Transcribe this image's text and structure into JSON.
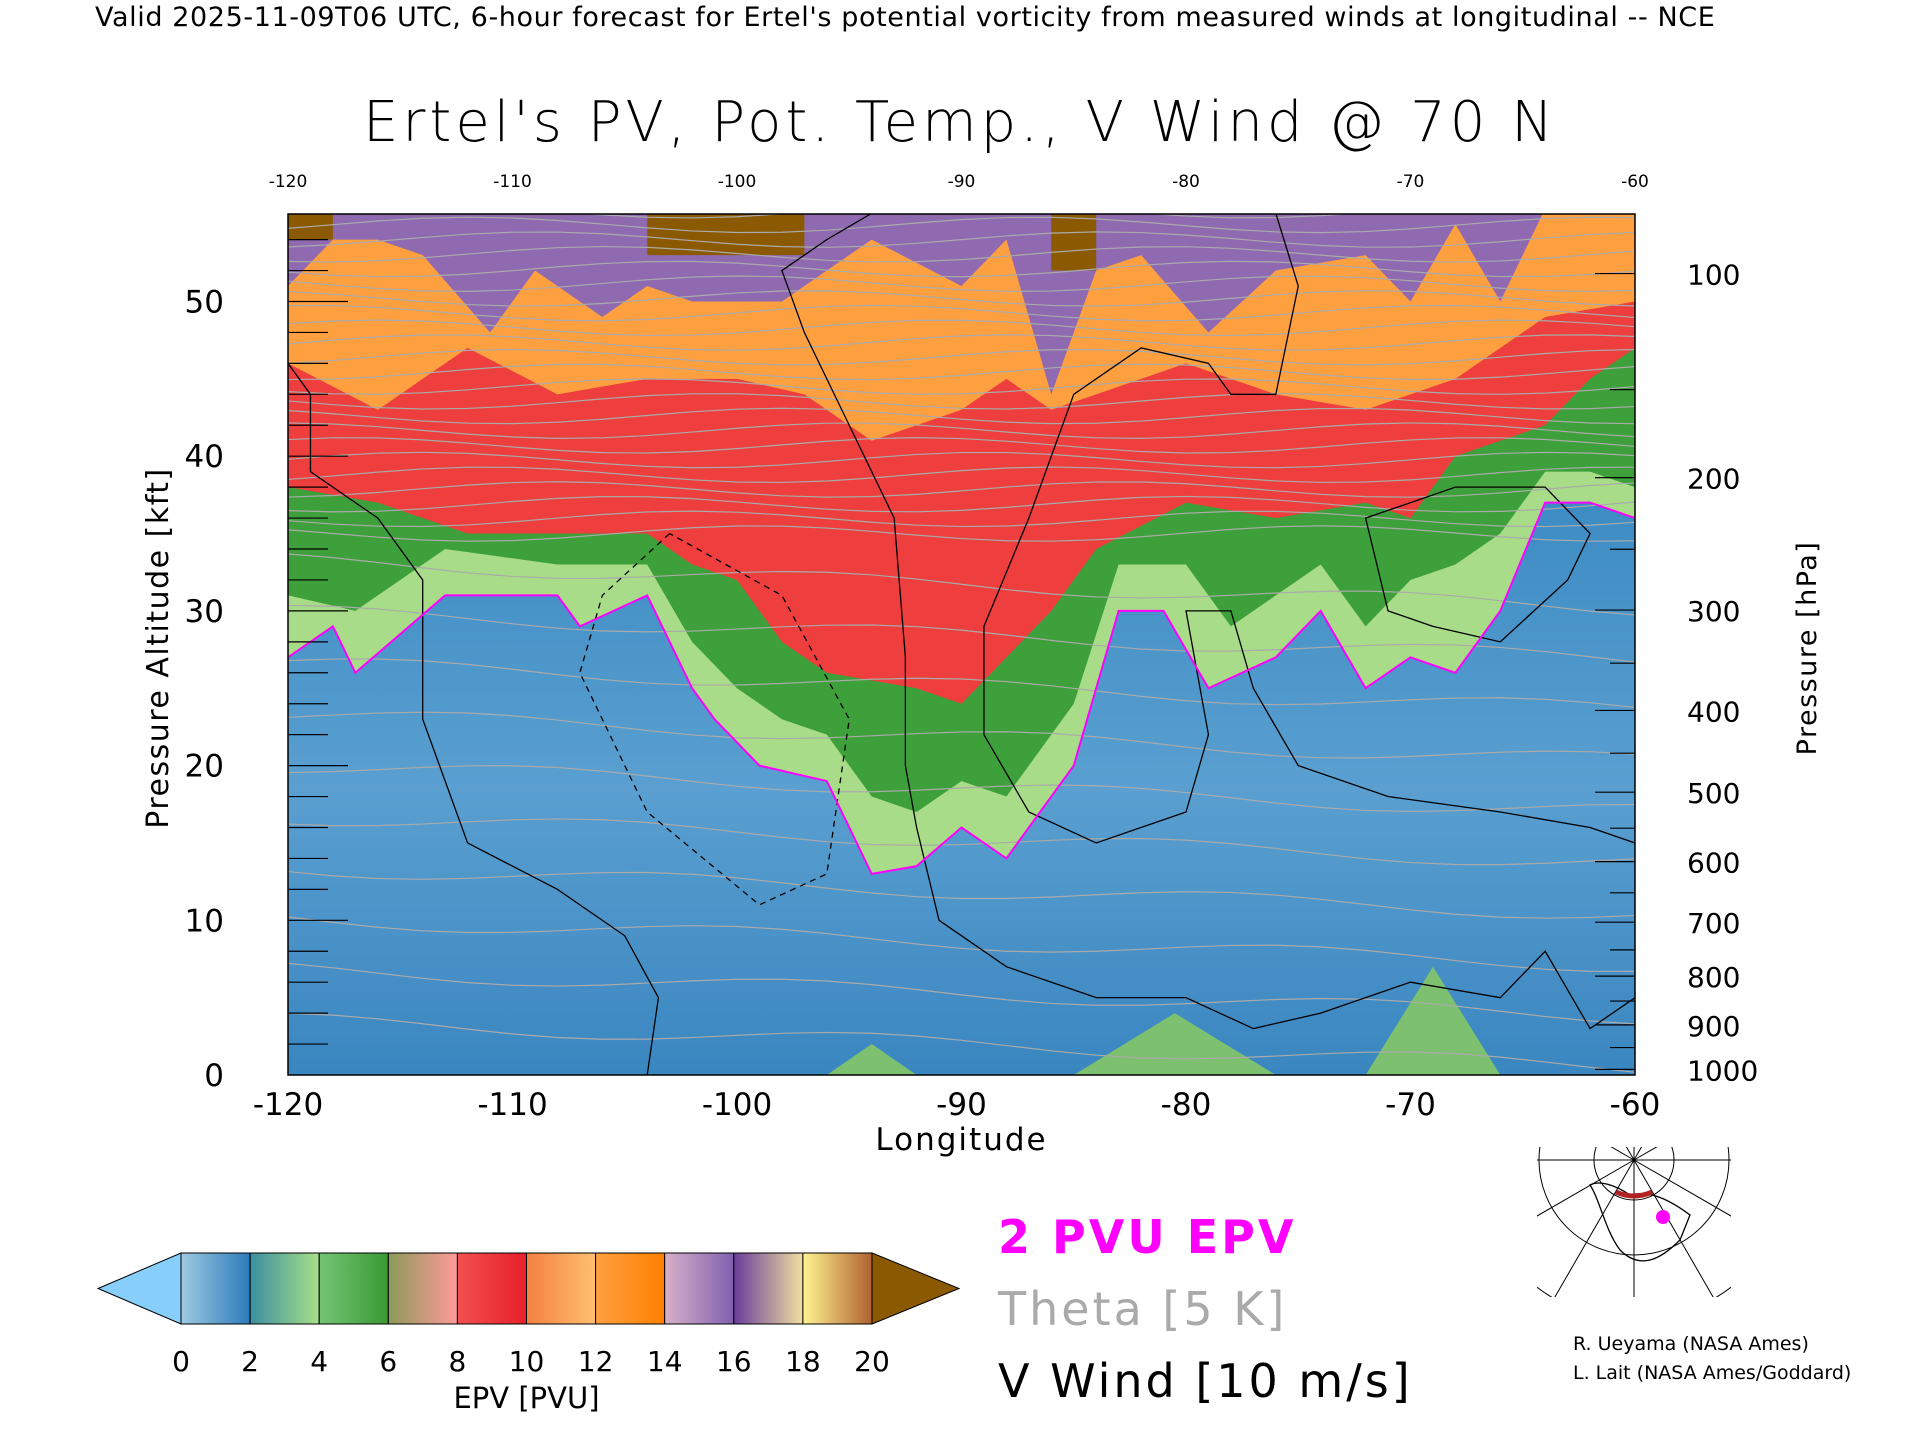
{
  "header": {
    "top_line": "Valid 2025-11-09T06 UTC, 6-hour forecast for Ertel's potential vorticity from measured winds at longitudinal -- NCE",
    "title": "Ertel's PV, Pot. Temp., V Wind @ 70 N"
  },
  "chart_data": {
    "type": "heatmap",
    "title": "Ertel's PV, Pot. Temp., V Wind @ 70 N",
    "xlabel": "Longitude",
    "ylabel_left": "Pressure Altitude [kft]",
    "ylabel_right": "Pressure [hPa]",
    "xlim": [
      -120,
      -60
    ],
    "ylim_kft": [
      0,
      55.7
    ],
    "x_ticks": [
      "-120",
      "-110",
      "-100",
      "-90",
      "-80",
      "-70",
      "-60"
    ],
    "x_tick_values": [
      -120,
      -110,
      -100,
      -90,
      -80,
      -70,
      -60
    ],
    "y_ticks_left": [
      "0",
      "10",
      "20",
      "30",
      "40",
      "50"
    ],
    "y_tick_values_left": [
      0,
      10,
      20,
      30,
      40,
      50
    ],
    "y_ticks_right": [
      "100",
      "200",
      "300",
      "400",
      "500",
      "600",
      "700",
      "800",
      "900",
      "1000"
    ],
    "y_tick_values_right": [
      100,
      200,
      300,
      400,
      500,
      600,
      700,
      800,
      900,
      1000
    ],
    "colorbar": {
      "label": "EPV [PVU]",
      "levels": [
        "0",
        "2",
        "4",
        "6",
        "8",
        "10",
        "12",
        "14",
        "16",
        "18",
        "20"
      ],
      "under_color": "#87cefa",
      "over_color": "#8b5a00",
      "segments": [
        [
          "#9ecae1",
          "#2b7bba"
        ],
        [
          "#3a8fa0",
          "#a8e088"
        ],
        [
          "#74c476",
          "#3a9a32"
        ],
        [
          "#8c9a5a",
          "#ff9a9a"
        ],
        [
          "#f05050",
          "#e8202a"
        ],
        [
          "#f48040",
          "#ffc070"
        ],
        [
          "#ffa040",
          "#ff8000"
        ],
        [
          "#d8b0c8",
          "#8060b0"
        ],
        [
          "#6a3d9a",
          "#f0e0a0"
        ],
        [
          "#fff590",
          "#b06030"
        ]
      ]
    },
    "epv_boundaries_pvu": [
      2,
      6,
      10,
      14
    ],
    "legend": {
      "epv_2pvu": "2 PVU EPV",
      "theta": "Theta [5 K]",
      "vwind": "V Wind [10 m/s]"
    },
    "colors": {
      "pv2": "#ff00ff",
      "theta": "#aaaaaa",
      "wind": "#000000"
    }
  },
  "credits": {
    "line1": "R. Ueyama (NASA Ames)",
    "line2": "L. Lait (NASA Ames/Goddard)"
  }
}
